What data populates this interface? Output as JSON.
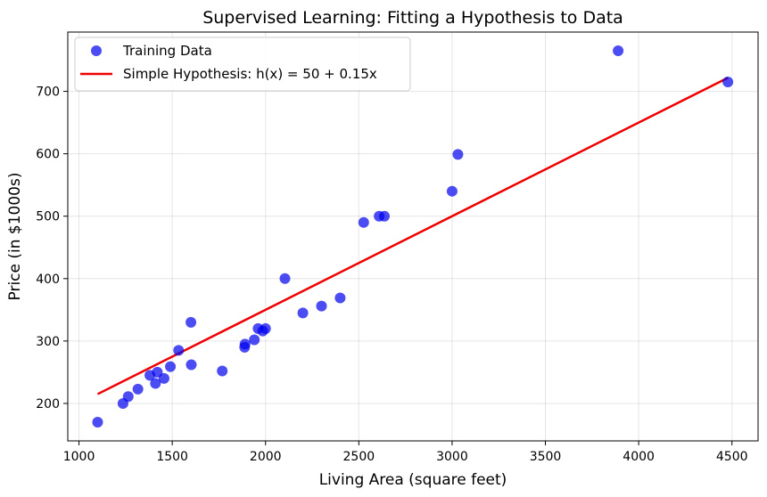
{
  "chart_data": {
    "type": "scatter",
    "title": "Supervised Learning: Fitting a Hypothesis to Data",
    "xlabel": "Living Area (square feet)",
    "ylabel": "Price (in $1000s)",
    "xlim": [
      940,
      4640
    ],
    "ylim": [
      140,
      795
    ],
    "xticks": [
      1000,
      1500,
      2000,
      2500,
      3000,
      3500,
      4000,
      4500
    ],
    "yticks": [
      200,
      300,
      400,
      500,
      600,
      700
    ],
    "grid": true,
    "legend_position": "top-left",
    "series": [
      {
        "name": "Training Data",
        "kind": "scatter",
        "color": "#0000ee",
        "points": [
          [
            1100,
            170
          ],
          [
            1236,
            200
          ],
          [
            1264,
            211
          ],
          [
            1316,
            223
          ],
          [
            1380,
            245
          ],
          [
            1410,
            232
          ],
          [
            1420,
            250
          ],
          [
            1456,
            240
          ],
          [
            1490,
            259
          ],
          [
            1534,
            285
          ],
          [
            1600,
            330
          ],
          [
            1602,
            262
          ],
          [
            1768,
            252
          ],
          [
            1888,
            290
          ],
          [
            1890,
            295
          ],
          [
            1940,
            302
          ],
          [
            1960,
            320
          ],
          [
            1985,
            316
          ],
          [
            2000,
            320
          ],
          [
            2104,
            400
          ],
          [
            2200,
            345
          ],
          [
            2300,
            356
          ],
          [
            2400,
            369
          ],
          [
            2526,
            490
          ],
          [
            2609,
            500
          ],
          [
            2637,
            500
          ],
          [
            3000,
            540
          ],
          [
            3031,
            599
          ],
          [
            3890,
            765
          ],
          [
            4478,
            715
          ]
        ]
      },
      {
        "name": "Simple Hypothesis: h(x) = 50 + 0.15x",
        "kind": "line",
        "color": "#ee0000",
        "intercept": 50,
        "slope": 0.15,
        "x_range": [
          1100,
          4478
        ]
      }
    ]
  }
}
